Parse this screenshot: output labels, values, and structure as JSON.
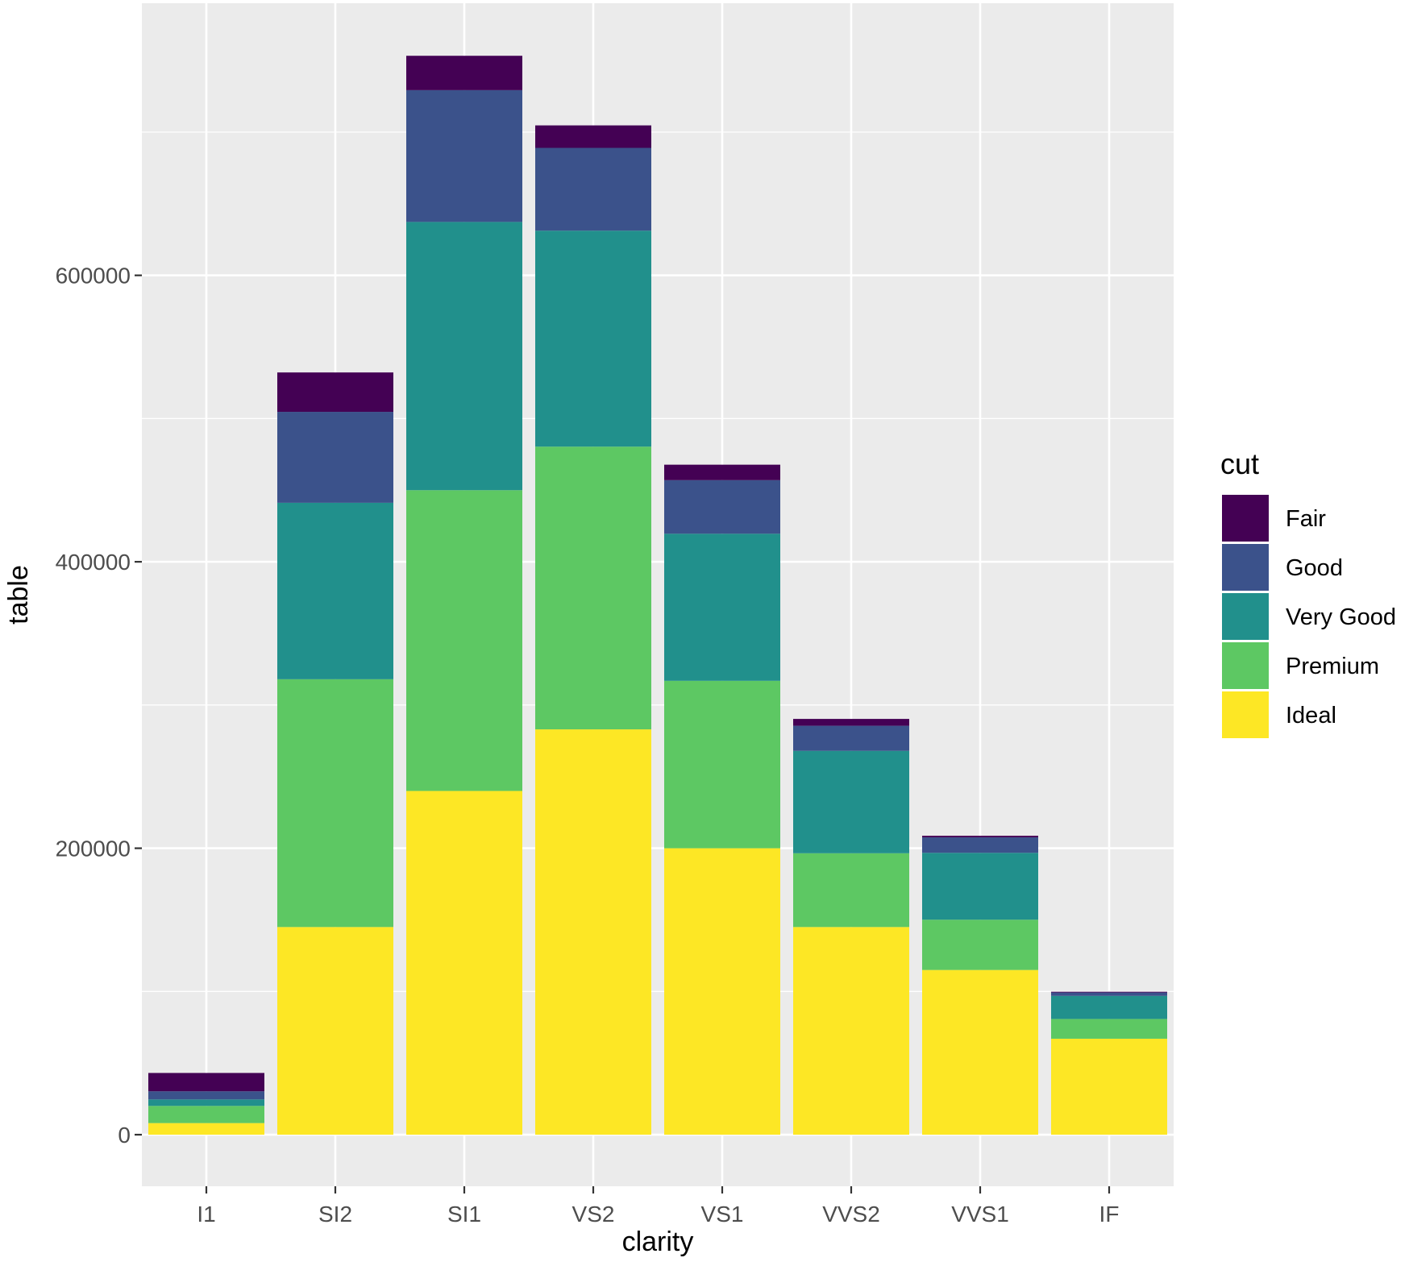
{
  "chart_data": {
    "type": "bar",
    "stacked": true,
    "xlabel": "clarity",
    "ylabel": "table",
    "categories": [
      "I1",
      "SI2",
      "SI1",
      "VS2",
      "VS1",
      "VVS2",
      "VVS1",
      "IF"
    ],
    "y_ticks": [
      0,
      200000,
      400000,
      600000
    ],
    "y_tick_labels": [
      "0",
      "200000",
      "400000",
      "600000"
    ],
    "ylim": [
      -36000,
      790000
    ],
    "grid": true,
    "legend": {
      "title": "cut",
      "placement": "right"
    },
    "series": [
      {
        "name": "Fair",
        "color": "#440154",
        "values": [
          12800,
          27500,
          24000,
          15700,
          10800,
          4800,
          1100,
          500
        ]
      },
      {
        "name": "Good",
        "color": "#3B528B",
        "values": [
          5700,
          63500,
          92000,
          57800,
          37400,
          17500,
          10800,
          2400
        ]
      },
      {
        "name": "Very Good",
        "color": "#21908C",
        "values": [
          4500,
          123200,
          187300,
          150800,
          102700,
          71500,
          46700,
          16100
        ]
      },
      {
        "name": "Premium",
        "color": "#5DC863",
        "values": [
          12000,
          173000,
          210000,
          197400,
          116900,
          51500,
          35100,
          13800
        ]
      },
      {
        "name": "Ideal",
        "color": "#FDE725",
        "values": [
          8100,
          145000,
          240000,
          283000,
          200000,
          145000,
          115000,
          67000
        ]
      }
    ]
  }
}
